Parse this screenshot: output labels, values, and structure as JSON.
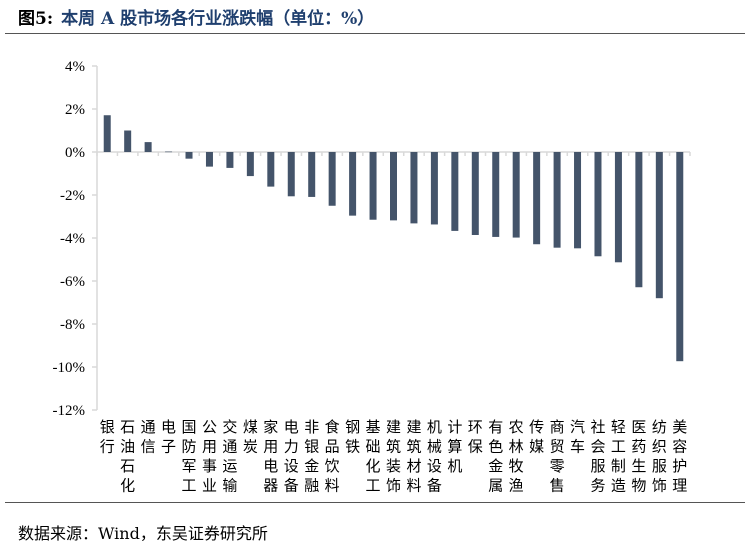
{
  "title": {
    "figure_label": "图5:",
    "text": "本周 A 股市场各行业涨跌幅（单位：%）"
  },
  "source": "数据来源：Wind，东吴证券研究所",
  "chart_data": {
    "type": "bar",
    "title": "本周 A 股市场各行业涨跌幅（单位：%）",
    "xlabel": "",
    "ylabel": "",
    "ylim": [
      -12,
      4
    ],
    "yticks": [
      4,
      2,
      0,
      -2,
      -4,
      -6,
      -8,
      -10,
      -12
    ],
    "ytick_labels": [
      "4%",
      "2%",
      "0%",
      "-2%",
      "-4%",
      "-6%",
      "-8%",
      "-10%",
      "-12%"
    ],
    "grid": false,
    "bar_color": "#44546a",
    "categories": [
      "银行",
      "石油石化",
      "通信",
      "电子",
      "国防军工",
      "公用事业",
      "交通运输",
      "煤炭",
      "家用电器",
      "电力设备",
      "非银金融",
      "食品饮料",
      "钢铁",
      "基础化工",
      "建筑装饰",
      "建筑材料",
      "机械设备",
      "计算机",
      "环保",
      "有色金属",
      "农林牧渔",
      "传媒",
      "商贸零售",
      "汽车",
      "社会服务",
      "轻工制造",
      "医药生物",
      "纺织服饰",
      "美容护理"
    ],
    "values": [
      1.71,
      1.0,
      0.46,
      0.02,
      -0.31,
      -0.68,
      -0.74,
      -1.12,
      -1.61,
      -2.06,
      -2.09,
      -2.5,
      -2.96,
      -3.15,
      -3.18,
      -3.32,
      -3.37,
      -3.67,
      -3.86,
      -3.95,
      -3.98,
      -4.29,
      -4.45,
      -4.48,
      -4.85,
      -5.13,
      -6.29,
      -6.8,
      -9.73
    ]
  }
}
